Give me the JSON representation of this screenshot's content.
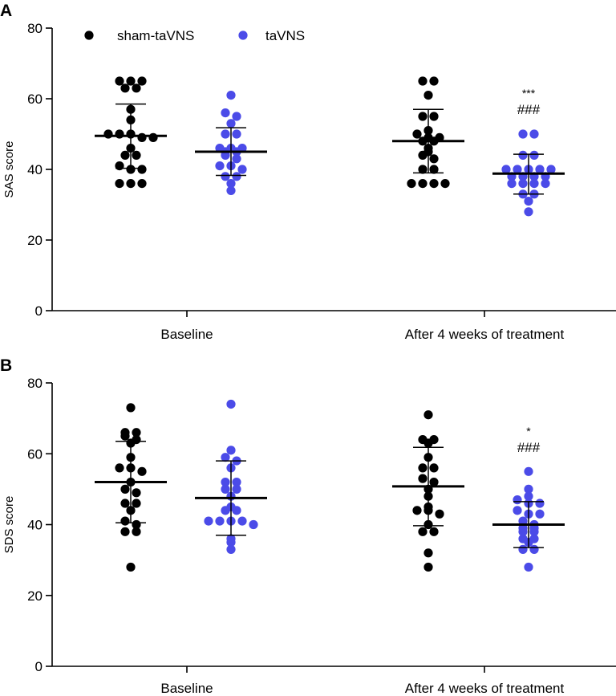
{
  "colors": {
    "sham": "#000000",
    "tavns": "#4b4be8",
    "axis": "#000000"
  },
  "legend": [
    {
      "label": "sham-taVNS",
      "series_key": "sham"
    },
    {
      "label": "taVNS",
      "series_key": "tavns"
    }
  ],
  "chart_data": [
    {
      "type": "scatter",
      "panel_label": "A",
      "ylabel": "SAS score",
      "ylim": [
        0,
        80
      ],
      "yticks": [
        0,
        20,
        40,
        60,
        80
      ],
      "categories": [
        "Baseline",
        "After 4 weeks of treatment"
      ],
      "series": [
        {
          "name": "sham-taVNS",
          "key": "sham",
          "groups": [
            {
              "category": "Baseline",
              "mean": 49.5,
              "sd_upper": 58.5,
              "sd_lower": 40.3,
              "points": [
                65,
                65,
                65,
                63,
                63,
                57,
                54,
                50,
                50,
                50,
                49,
                49,
                46,
                44,
                44,
                41,
                40,
                40,
                36,
                36,
                36
              ]
            },
            {
              "category": "After 4 weeks of treatment",
              "mean": 48,
              "sd_upper": 57,
              "sd_lower": 39,
              "points": [
                65,
                65,
                61,
                55,
                55,
                51,
                50,
                49,
                49,
                48,
                48,
                46,
                45,
                44,
                43,
                40,
                40,
                36,
                36,
                36,
                36
              ]
            }
          ]
        },
        {
          "name": "taVNS",
          "key": "tavns",
          "groups": [
            {
              "category": "Baseline",
              "mean": 45,
              "sd_upper": 51.8,
              "sd_lower": 38.3,
              "points": [
                61,
                56,
                55,
                53,
                50,
                50,
                46,
                46,
                46,
                45,
                45,
                44,
                43,
                41,
                41,
                40,
                38,
                38,
                36,
                34
              ]
            },
            {
              "category": "After 4 weeks of treatment",
              "mean": 38.8,
              "sd_upper": 44.3,
              "sd_lower": 33,
              "points": [
                50,
                50,
                44,
                44,
                40,
                40,
                40,
                40,
                40,
                38,
                38,
                38,
                38,
                36,
                36,
                36,
                36,
                33,
                33,
                31,
                28
              ]
            }
          ]
        }
      ],
      "annotations": [
        {
          "category": "After 4 weeks of treatment",
          "series": "taVNS",
          "lines": [
            "***",
            "###"
          ]
        }
      ]
    },
    {
      "type": "scatter",
      "panel_label": "B",
      "ylabel": "SDS score",
      "ylim": [
        0,
        80
      ],
      "yticks": [
        0,
        20,
        40,
        60,
        80
      ],
      "categories": [
        "Baseline",
        "After 4 weeks of treatment"
      ],
      "series": [
        {
          "name": "sham-taVNS",
          "key": "sham",
          "groups": [
            {
              "category": "Baseline",
              "mean": 52,
              "sd_upper": 63.5,
              "sd_lower": 40.5,
              "points": [
                73,
                66,
                66,
                65,
                64,
                63,
                59,
                56,
                56,
                55,
                52,
                50,
                49,
                46,
                46,
                44,
                41,
                40,
                38,
                38,
                28
              ]
            },
            {
              "category": "After 4 weeks of treatment",
              "mean": 50.8,
              "sd_upper": 61.8,
              "sd_lower": 39.7,
              "points": [
                71,
                64,
                64,
                63,
                59,
                56,
                56,
                53,
                52,
                50,
                48,
                45,
                44,
                44,
                43,
                40,
                38,
                38,
                32,
                28
              ]
            }
          ]
        },
        {
          "name": "taVNS",
          "key": "tavns",
          "groups": [
            {
              "category": "Baseline",
              "mean": 47.5,
              "sd_upper": 58,
              "sd_lower": 37,
              "points": [
                74,
                61,
                59,
                58,
                56,
                52,
                52,
                50,
                50,
                48,
                45,
                44,
                44,
                41,
                41,
                41,
                41,
                40,
                36,
                35,
                33
              ]
            },
            {
              "category": "After 4 weeks of treatment",
              "mean": 40,
              "sd_upper": 46.5,
              "sd_lower": 33.5,
              "points": [
                55,
                50,
                48,
                47,
                46,
                46,
                44,
                43,
                43,
                41,
                40,
                39,
                39,
                38,
                38,
                36,
                36,
                35,
                33,
                33,
                28
              ]
            }
          ]
        }
      ],
      "annotations": [
        {
          "category": "After 4 weeks of treatment",
          "series": "taVNS",
          "lines": [
            "*",
            "###"
          ]
        }
      ]
    }
  ]
}
